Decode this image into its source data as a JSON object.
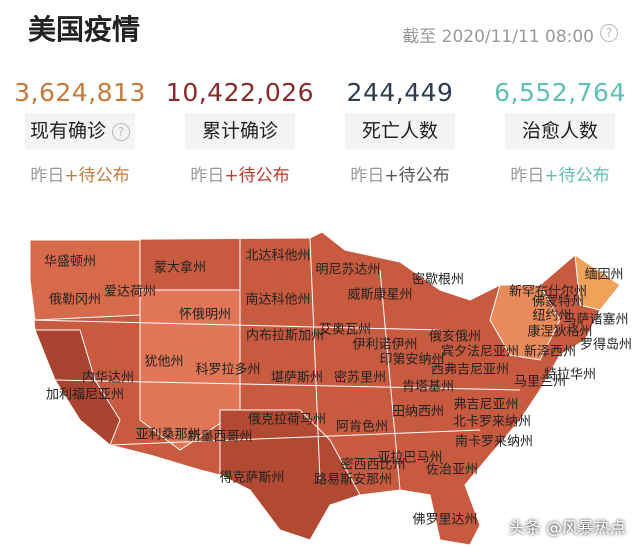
{
  "header": {
    "title": "美国疫情",
    "timestamp": "截至 2020/11/11 08:00",
    "help": "?"
  },
  "stats": [
    {
      "value": "3,624,813",
      "label": "现有确诊",
      "help": "?",
      "delta_label": "昨日",
      "delta": "+待公布"
    },
    {
      "value": "10,422,026",
      "label": "累计确诊",
      "delta_label": "昨日",
      "delta": "+待公布"
    },
    {
      "value": "244,449",
      "label": "死亡人数",
      "delta_label": "昨日",
      "delta": "+待公布"
    },
    {
      "value": "6,552,764",
      "label": "治愈人数",
      "delta_label": "昨日",
      "delta": "+待公布"
    }
  ],
  "map": {
    "labels": [
      "华盛顿州",
      "蒙大拿州",
      "北达科他州",
      "明尼苏达州",
      "缅因州",
      "俄勒冈州",
      "爱达荷州",
      "南达科他州",
      "威斯康星州",
      "密歇根州",
      "新罕布什尔州",
      "佛蒙特州",
      "马萨诸塞州",
      "怀俄明州",
      "内布拉斯加州",
      "艾奥瓦州",
      "纽约州",
      "伊利诺伊州",
      "俄亥俄州",
      "宾夕法尼亚州",
      "康涅狄格州",
      "罗得岛州",
      "印第安纳州",
      "新泽西州",
      "内华达州",
      "犹他州",
      "科罗拉多州",
      "堪萨斯州",
      "密苏里州",
      "西弗吉尼亚州",
      "特拉华州",
      "加利福尼亚州",
      "肯塔基州",
      "马里兰州",
      "弗吉尼亚州",
      "田纳西州",
      "北卡罗来纳州",
      "亚利桑那州",
      "新墨西哥州",
      "俄克拉荷马州",
      "阿肯色州",
      "南卡罗来纳州",
      "得克萨斯州",
      "密西西比州",
      "亚拉巴马州",
      "佐治亚州",
      "路易斯安那州",
      "佛罗里达州"
    ]
  },
  "watermark": "头条 @风暴热点"
}
